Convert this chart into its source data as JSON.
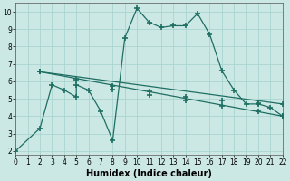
{
  "line1": {
    "x": [
      0,
      2,
      3,
      4,
      5,
      5,
      6,
      7,
      8,
      9,
      10,
      11,
      12,
      13,
      14,
      15,
      16,
      17,
      18,
      19,
      20,
      21,
      22
    ],
    "y": [
      2,
      3.3,
      5.8,
      5.5,
      5.1,
      5.8,
      5.5,
      4.3,
      2.6,
      8.5,
      10.2,
      9.4,
      9.1,
      9.2,
      9.2,
      9.9,
      8.7,
      6.6,
      5.5,
      4.7,
      4.7,
      4.5,
      4.0
    ]
  },
  "line2": {
    "x": [
      2,
      22
    ],
    "y": [
      6.55,
      4.0
    ],
    "markers_x": [
      2,
      5,
      8,
      11,
      14,
      17,
      20,
      22
    ],
    "markers_y": [
      6.55,
      6.05,
      5.55,
      5.2,
      4.9,
      4.6,
      4.3,
      4.0
    ]
  },
  "line3": {
    "x": [
      2,
      22
    ],
    "y": [
      6.55,
      4.7
    ],
    "markers_x": [
      2,
      5,
      8,
      11,
      14,
      17,
      20,
      22
    ],
    "markers_y": [
      6.55,
      6.15,
      5.75,
      5.4,
      5.1,
      4.9,
      4.75,
      4.7
    ]
  },
  "bg_color": "#cce8e5",
  "grid_color": "#aad4d0",
  "plot_bg": "#cce8e5",
  "line_color": "#1e6e62",
  "marker": "+",
  "markersize": 4,
  "markeredgewidth": 1.2,
  "lw": 0.9,
  "xlim": [
    0,
    22
  ],
  "ylim": [
    1.8,
    10.5
  ],
  "xticks": [
    0,
    1,
    2,
    3,
    4,
    5,
    6,
    7,
    8,
    9,
    10,
    11,
    12,
    13,
    14,
    15,
    16,
    17,
    18,
    19,
    20,
    21,
    22
  ],
  "yticks": [
    2,
    3,
    4,
    5,
    6,
    7,
    8,
    9,
    10
  ],
  "xlabel": "Humidex (Indice chaleur)",
  "tick_fontsize": 5.5,
  "xlabel_fontsize": 7.0
}
